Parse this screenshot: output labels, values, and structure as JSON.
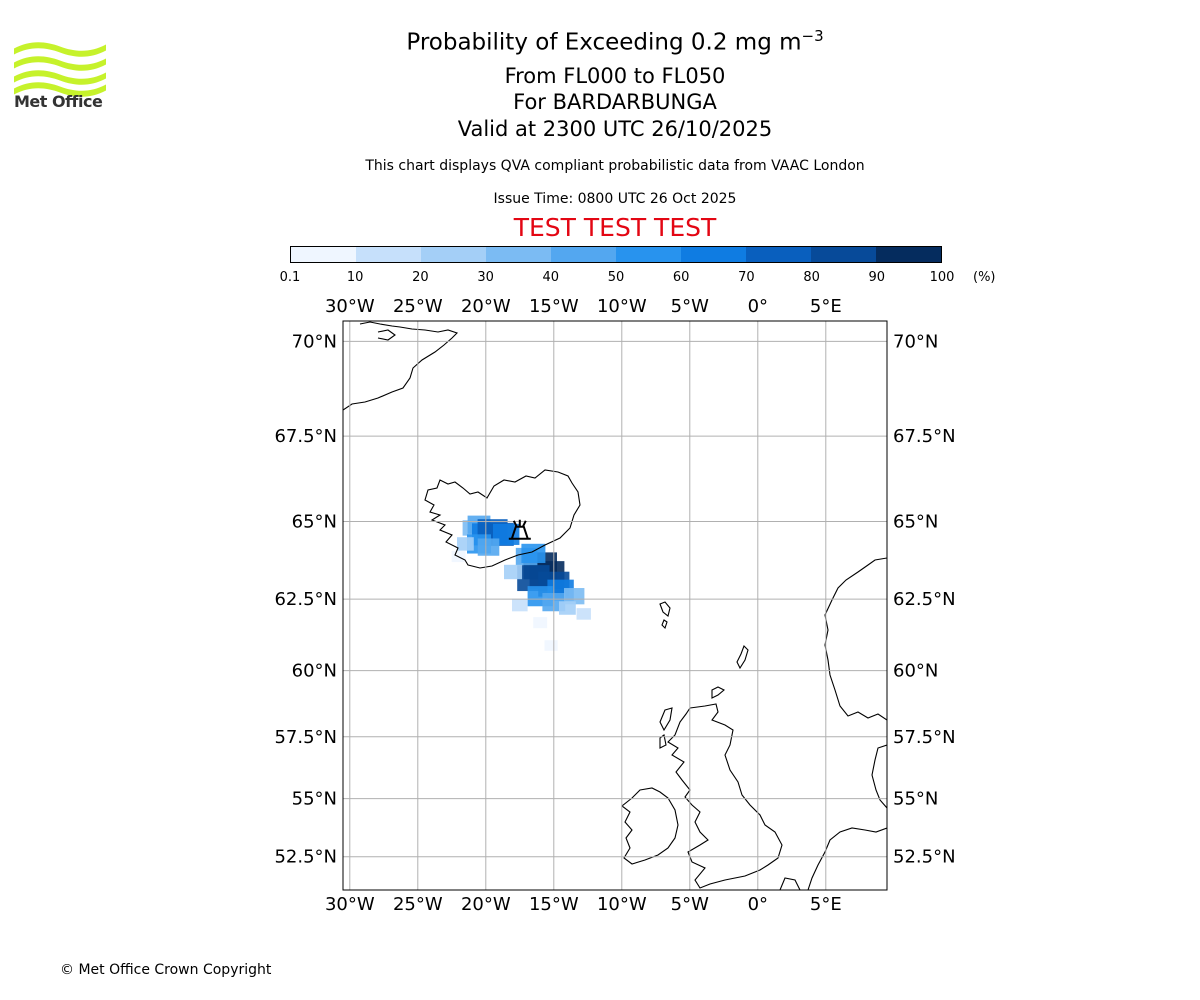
{
  "header": {
    "title_main": "Probability of Exceeding 0.2 mg m",
    "title_exponent": "−3",
    "flight_levels": "From FL000 to FL050",
    "volcano": "For BARDARBUNGA",
    "valid_time": "Valid at 2300 UTC 26/10/2025",
    "subtitle": "This chart displays QVA compliant probabilistic data from VAAC London",
    "issue_time": "Issue Time: 0800 UTC 26 Oct 2025",
    "test_banner": "TEST TEST TEST"
  },
  "logo": {
    "text": "Met Office",
    "icon": "met-office-wave-logo"
  },
  "footer": {
    "copyright": "© Met Office Crown Copyright"
  },
  "colorbar": {
    "unit": "(%)",
    "ticks": [
      "0.1",
      "10",
      "20",
      "30",
      "40",
      "50",
      "60",
      "70",
      "80",
      "90",
      "100"
    ],
    "colors": [
      "#eff6ff",
      "#c6e0fb",
      "#a4cff7",
      "#7bbbf3",
      "#53a7f0",
      "#2893ee",
      "#0f7ce2",
      "#095fbe",
      "#074a99",
      "#052c5e"
    ]
  },
  "map": {
    "lon_labels": [
      "30°W",
      "25°W",
      "20°W",
      "15°W",
      "10°W",
      "5°W",
      "0°",
      "5°E"
    ],
    "lon_values": [
      -30,
      -25,
      -20,
      -15,
      -10,
      -5,
      0,
      5
    ],
    "lat_labels": [
      "70°N",
      "67.5°N",
      "65°N",
      "62.5°N",
      "60°N",
      "57.5°N",
      "55°N",
      "52.5°N"
    ],
    "lat_values": [
      70,
      67.5,
      65,
      62.5,
      60,
      57.5,
      55,
      52.5
    ],
    "lon_range": [
      -30.5,
      9.5
    ],
    "lat_range": [
      51.0,
      70.5
    ],
    "volcano_name": "BARDARBUNGA",
    "volcano_lon": -17.5,
    "volcano_lat": 64.65,
    "ash_plume_cells": [
      {
        "lon": -21.0,
        "lat": 64.8,
        "p": 30
      },
      {
        "lon": -20.5,
        "lat": 64.9,
        "p": 45
      },
      {
        "lon": -20.0,
        "lat": 64.6,
        "p": 65
      },
      {
        "lon": -19.5,
        "lat": 64.7,
        "p": 75
      },
      {
        "lon": -19.0,
        "lat": 64.6,
        "p": 70
      },
      {
        "lon": -18.5,
        "lat": 64.6,
        "p": 60
      },
      {
        "lon": -20.5,
        "lat": 64.3,
        "p": 50
      },
      {
        "lon": -21.5,
        "lat": 64.3,
        "p": 20
      },
      {
        "lon": -19.8,
        "lat": 64.2,
        "p": 40
      },
      {
        "lon": -16.0,
        "lat": 63.6,
        "p": 90
      },
      {
        "lon": -15.5,
        "lat": 63.3,
        "p": 95
      },
      {
        "lon": -16.5,
        "lat": 63.2,
        "p": 85
      },
      {
        "lon": -15.0,
        "lat": 63.0,
        "p": 80
      },
      {
        "lon": -14.5,
        "lat": 62.8,
        "p": 60
      },
      {
        "lon": -16.0,
        "lat": 62.6,
        "p": 55
      },
      {
        "lon": -15.0,
        "lat": 62.4,
        "p": 45
      },
      {
        "lon": -13.5,
        "lat": 62.6,
        "p": 35
      },
      {
        "lon": -17.0,
        "lat": 63.9,
        "p": 40
      },
      {
        "lon": -16.5,
        "lat": 64.0,
        "p": 50
      },
      {
        "lon": -14.0,
        "lat": 62.2,
        "p": 20
      },
      {
        "lon": -17.5,
        "lat": 62.3,
        "p": 15
      },
      {
        "lon": -16.0,
        "lat": 61.7,
        "p": 8
      },
      {
        "lon": -15.2,
        "lat": 60.9,
        "p": 5
      },
      {
        "lon": -12.8,
        "lat": 62.0,
        "p": 10
      },
      {
        "lon": -22.0,
        "lat": 63.9,
        "p": 8
      },
      {
        "lon": -18.0,
        "lat": 63.4,
        "p": 25
      }
    ]
  }
}
